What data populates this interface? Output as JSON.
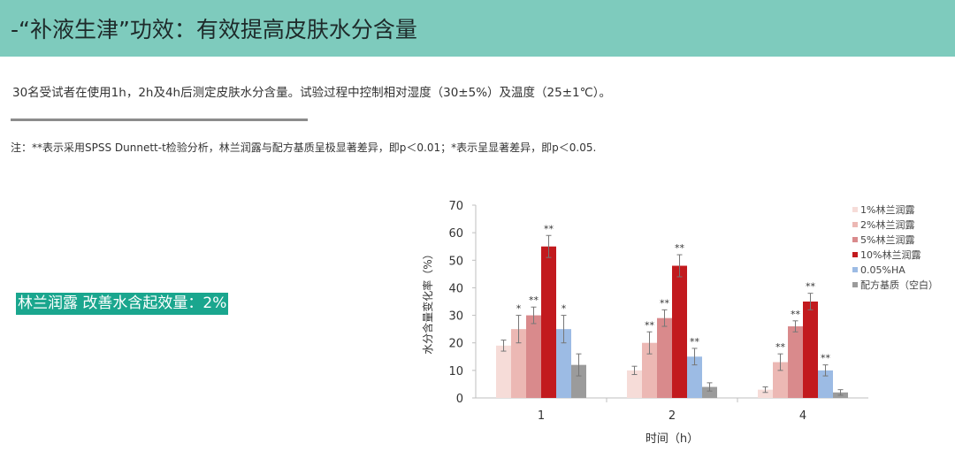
{
  "header": {
    "title": "-“补液生津”功效：有效提高皮肤水分含量"
  },
  "description": "30名受试者在使用1h，2h及4h后测定皮肤水分含量。试验过程中控制相对湿度（30±5%）及温度（25±1℃）。",
  "note": "注：**表示采用SPSS Dunnett-t检验分析，林兰润露与配方基质呈极显著差异，即p＜0.01；*表示呈显著差异，即p＜0.05.",
  "highlight": "林兰润露 改善水含起效量：2%",
  "chart_data": {
    "type": "bar",
    "title": "",
    "xlabel": "时间（h）",
    "ylabel": "水分含量变化率（%）",
    "ylim": [
      0,
      70
    ],
    "yticks": [
      0,
      10,
      20,
      30,
      40,
      50,
      60,
      70
    ],
    "categories": [
      "1",
      "2",
      "4"
    ],
    "legend_position": "right",
    "grid": false,
    "series": [
      {
        "name": "1%林兰润露",
        "color": "#f6dcd8",
        "values": [
          19,
          10,
          3
        ],
        "errors": [
          2,
          1.5,
          1
        ],
        "sig": [
          "",
          "",
          ""
        ]
      },
      {
        "name": "2%林兰润露",
        "color": "#ecb8b4",
        "values": [
          25,
          20,
          13
        ],
        "errors": [
          5,
          4,
          3
        ],
        "sig": [
          "*",
          "**",
          "**"
        ]
      },
      {
        "name": "5%林兰润露",
        "color": "#d98a8c",
        "values": [
          30,
          29,
          26
        ],
        "errors": [
          3,
          3,
          2
        ],
        "sig": [
          "**",
          "**",
          "**"
        ]
      },
      {
        "name": "10%林兰润露",
        "color": "#c21a1e",
        "values": [
          55,
          48,
          35
        ],
        "errors": [
          4,
          4,
          3
        ],
        "sig": [
          "**",
          "**",
          "**"
        ]
      },
      {
        "name": "0.05%HA",
        "color": "#9cbbe4",
        "values": [
          25,
          15,
          10
        ],
        "errors": [
          5,
          3,
          2
        ],
        "sig": [
          "*",
          "**",
          "**"
        ]
      },
      {
        "name": "配方基质（空白）",
        "color": "#9b9b9b",
        "values": [
          12,
          4,
          2
        ],
        "errors": [
          4,
          1.5,
          1
        ],
        "sig": [
          "",
          "",
          ""
        ]
      }
    ]
  }
}
